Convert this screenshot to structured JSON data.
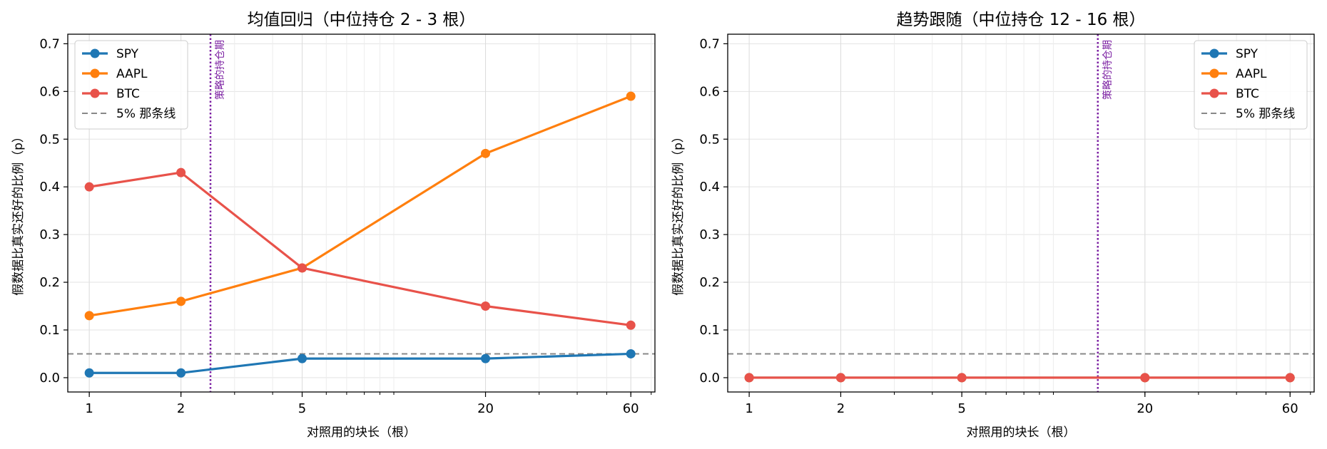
{
  "chart_data": [
    {
      "type": "line",
      "title": "均值回归（中位持仓 2 - 3 根）",
      "xlabel": "对照用的块长（根）",
      "ylabel": "假数据比真实还好的比例（p）",
      "x": [
        1,
        2,
        5,
        20,
        60
      ],
      "xscale": "log",
      "xticks": [
        "1",
        "2",
        "5",
        "20",
        "60"
      ],
      "ylim": [
        -0.03,
        0.72
      ],
      "yticks": [
        "0.0",
        "0.1",
        "0.2",
        "0.3",
        "0.4",
        "0.5",
        "0.6",
        "0.7"
      ],
      "grid": true,
      "legend": "top-left",
      "series": [
        {
          "name": "SPY",
          "color": "#1f77b4",
          "values": [
            0.01,
            0.01,
            0.04,
            0.04,
            0.05
          ]
        },
        {
          "name": "AAPL",
          "color": "#ff7f0e",
          "values": [
            0.13,
            0.16,
            0.23,
            0.47,
            0.59
          ]
        },
        {
          "name": "BTC",
          "color": "#e8524a",
          "values": [
            0.4,
            0.43,
            0.23,
            0.15,
            0.11
          ]
        }
      ],
      "hline": {
        "label": "5% 那条线",
        "value": 0.05,
        "color": "#888888"
      },
      "vline": {
        "label": "策略的持仓期",
        "value": 2.5,
        "color": "#7b1fa2"
      }
    },
    {
      "type": "line",
      "title": "趋势跟随（中位持仓 12 - 16 根）",
      "xlabel": "对照用的块长（根）",
      "ylabel": "假数据比真实还好的比例（p）",
      "x": [
        1,
        2,
        5,
        20,
        60
      ],
      "xscale": "log",
      "xticks": [
        "1",
        "2",
        "5",
        "20",
        "60"
      ],
      "ylim": [
        -0.03,
        0.72
      ],
      "yticks": [
        "0.0",
        "0.1",
        "0.2",
        "0.3",
        "0.4",
        "0.5",
        "0.6",
        "0.7"
      ],
      "grid": true,
      "legend": "top-right",
      "series": [
        {
          "name": "SPY",
          "color": "#1f77b4",
          "values": [
            0,
            0,
            0,
            0,
            0
          ]
        },
        {
          "name": "AAPL",
          "color": "#ff7f0e",
          "values": [
            0,
            0,
            0,
            0,
            0
          ]
        },
        {
          "name": "BTC",
          "color": "#e8524a",
          "values": [
            0,
            0,
            0,
            0,
            0
          ]
        }
      ],
      "hline": {
        "label": "5% 那条线",
        "value": 0.05,
        "color": "#888888"
      },
      "vline": {
        "label": "策略的持仓期",
        "value": 14,
        "color": "#7b1fa2"
      }
    }
  ]
}
